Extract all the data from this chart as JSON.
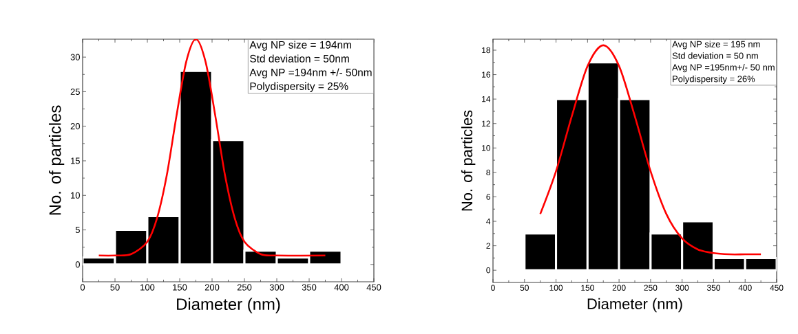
{
  "chart_data": [
    {
      "type": "histogram",
      "xlabel": "Diameter (nm)",
      "ylabel": "No. of particles",
      "xlim": [
        0,
        450
      ],
      "ylim": [
        -2.5,
        32.6
      ],
      "xticks": [
        0,
        50,
        100,
        150,
        200,
        250,
        300,
        350,
        400,
        450
      ],
      "yticks": [
        0,
        5,
        10,
        15,
        20,
        25,
        30
      ],
      "annotations": [
        "Avg NP size = 194nm",
        "Std deviation = 50nm",
        "Avg NP =194nm +/- 50nm",
        "Polydispersity = 25%"
      ],
      "series": [
        {
          "type": "histogram",
          "color": "#000000",
          "bins": [
            0,
            50,
            100,
            150,
            200,
            250,
            300,
            350,
            400
          ],
          "values": [
            1,
            5,
            7,
            28,
            18,
            2,
            1,
            2
          ]
        },
        {
          "type": "line",
          "color": "#ff0000",
          "x": [
            25,
            50,
            75,
            100,
            115,
            130,
            145,
            160,
            175,
            190,
            205,
            220,
            235,
            250,
            275,
            300,
            375
          ],
          "values": [
            1.3,
            1.3,
            1.5,
            3.3,
            6.7,
            12.9,
            21.5,
            29.3,
            32.6,
            29.3,
            21.5,
            12.9,
            6.7,
            3.3,
            1.5,
            1.3,
            1.3
          ]
        }
      ]
    },
    {
      "type": "histogram",
      "xlabel": "Diameter (nm)",
      "ylabel": "No. of particles",
      "xlim": [
        0,
        450
      ],
      "ylim": [
        -1,
        18.9
      ],
      "xticks": [
        0,
        50,
        100,
        150,
        200,
        250,
        300,
        350,
        400,
        450
      ],
      "yticks": [
        0,
        2,
        4,
        6,
        8,
        10,
        12,
        14,
        16,
        18
      ],
      "annotations": [
        "Avg NP size = 195 nm",
        "Std deviation = 50 nm",
        "Avg NP =195nm+/- 50 nm",
        "Polydispersity = 26%"
      ],
      "series": [
        {
          "type": "histogram",
          "color": "#000000",
          "bins": [
            50,
            100,
            150,
            200,
            250,
            300,
            350,
            400,
            450
          ],
          "values": [
            3,
            14,
            17,
            14,
            3,
            4,
            1,
            1
          ]
        },
        {
          "type": "line",
          "color": "#ff0000",
          "x": [
            75,
            100,
            125,
            150,
            175,
            200,
            225,
            250,
            275,
            300,
            325,
            350,
            375,
            400,
            425
          ],
          "values": [
            4.6,
            8.1,
            12.6,
            16.7,
            18.4,
            16.7,
            12.6,
            8.1,
            4.6,
            2.6,
            1.7,
            1.4,
            1.3,
            1.3,
            1.3
          ]
        }
      ]
    }
  ]
}
